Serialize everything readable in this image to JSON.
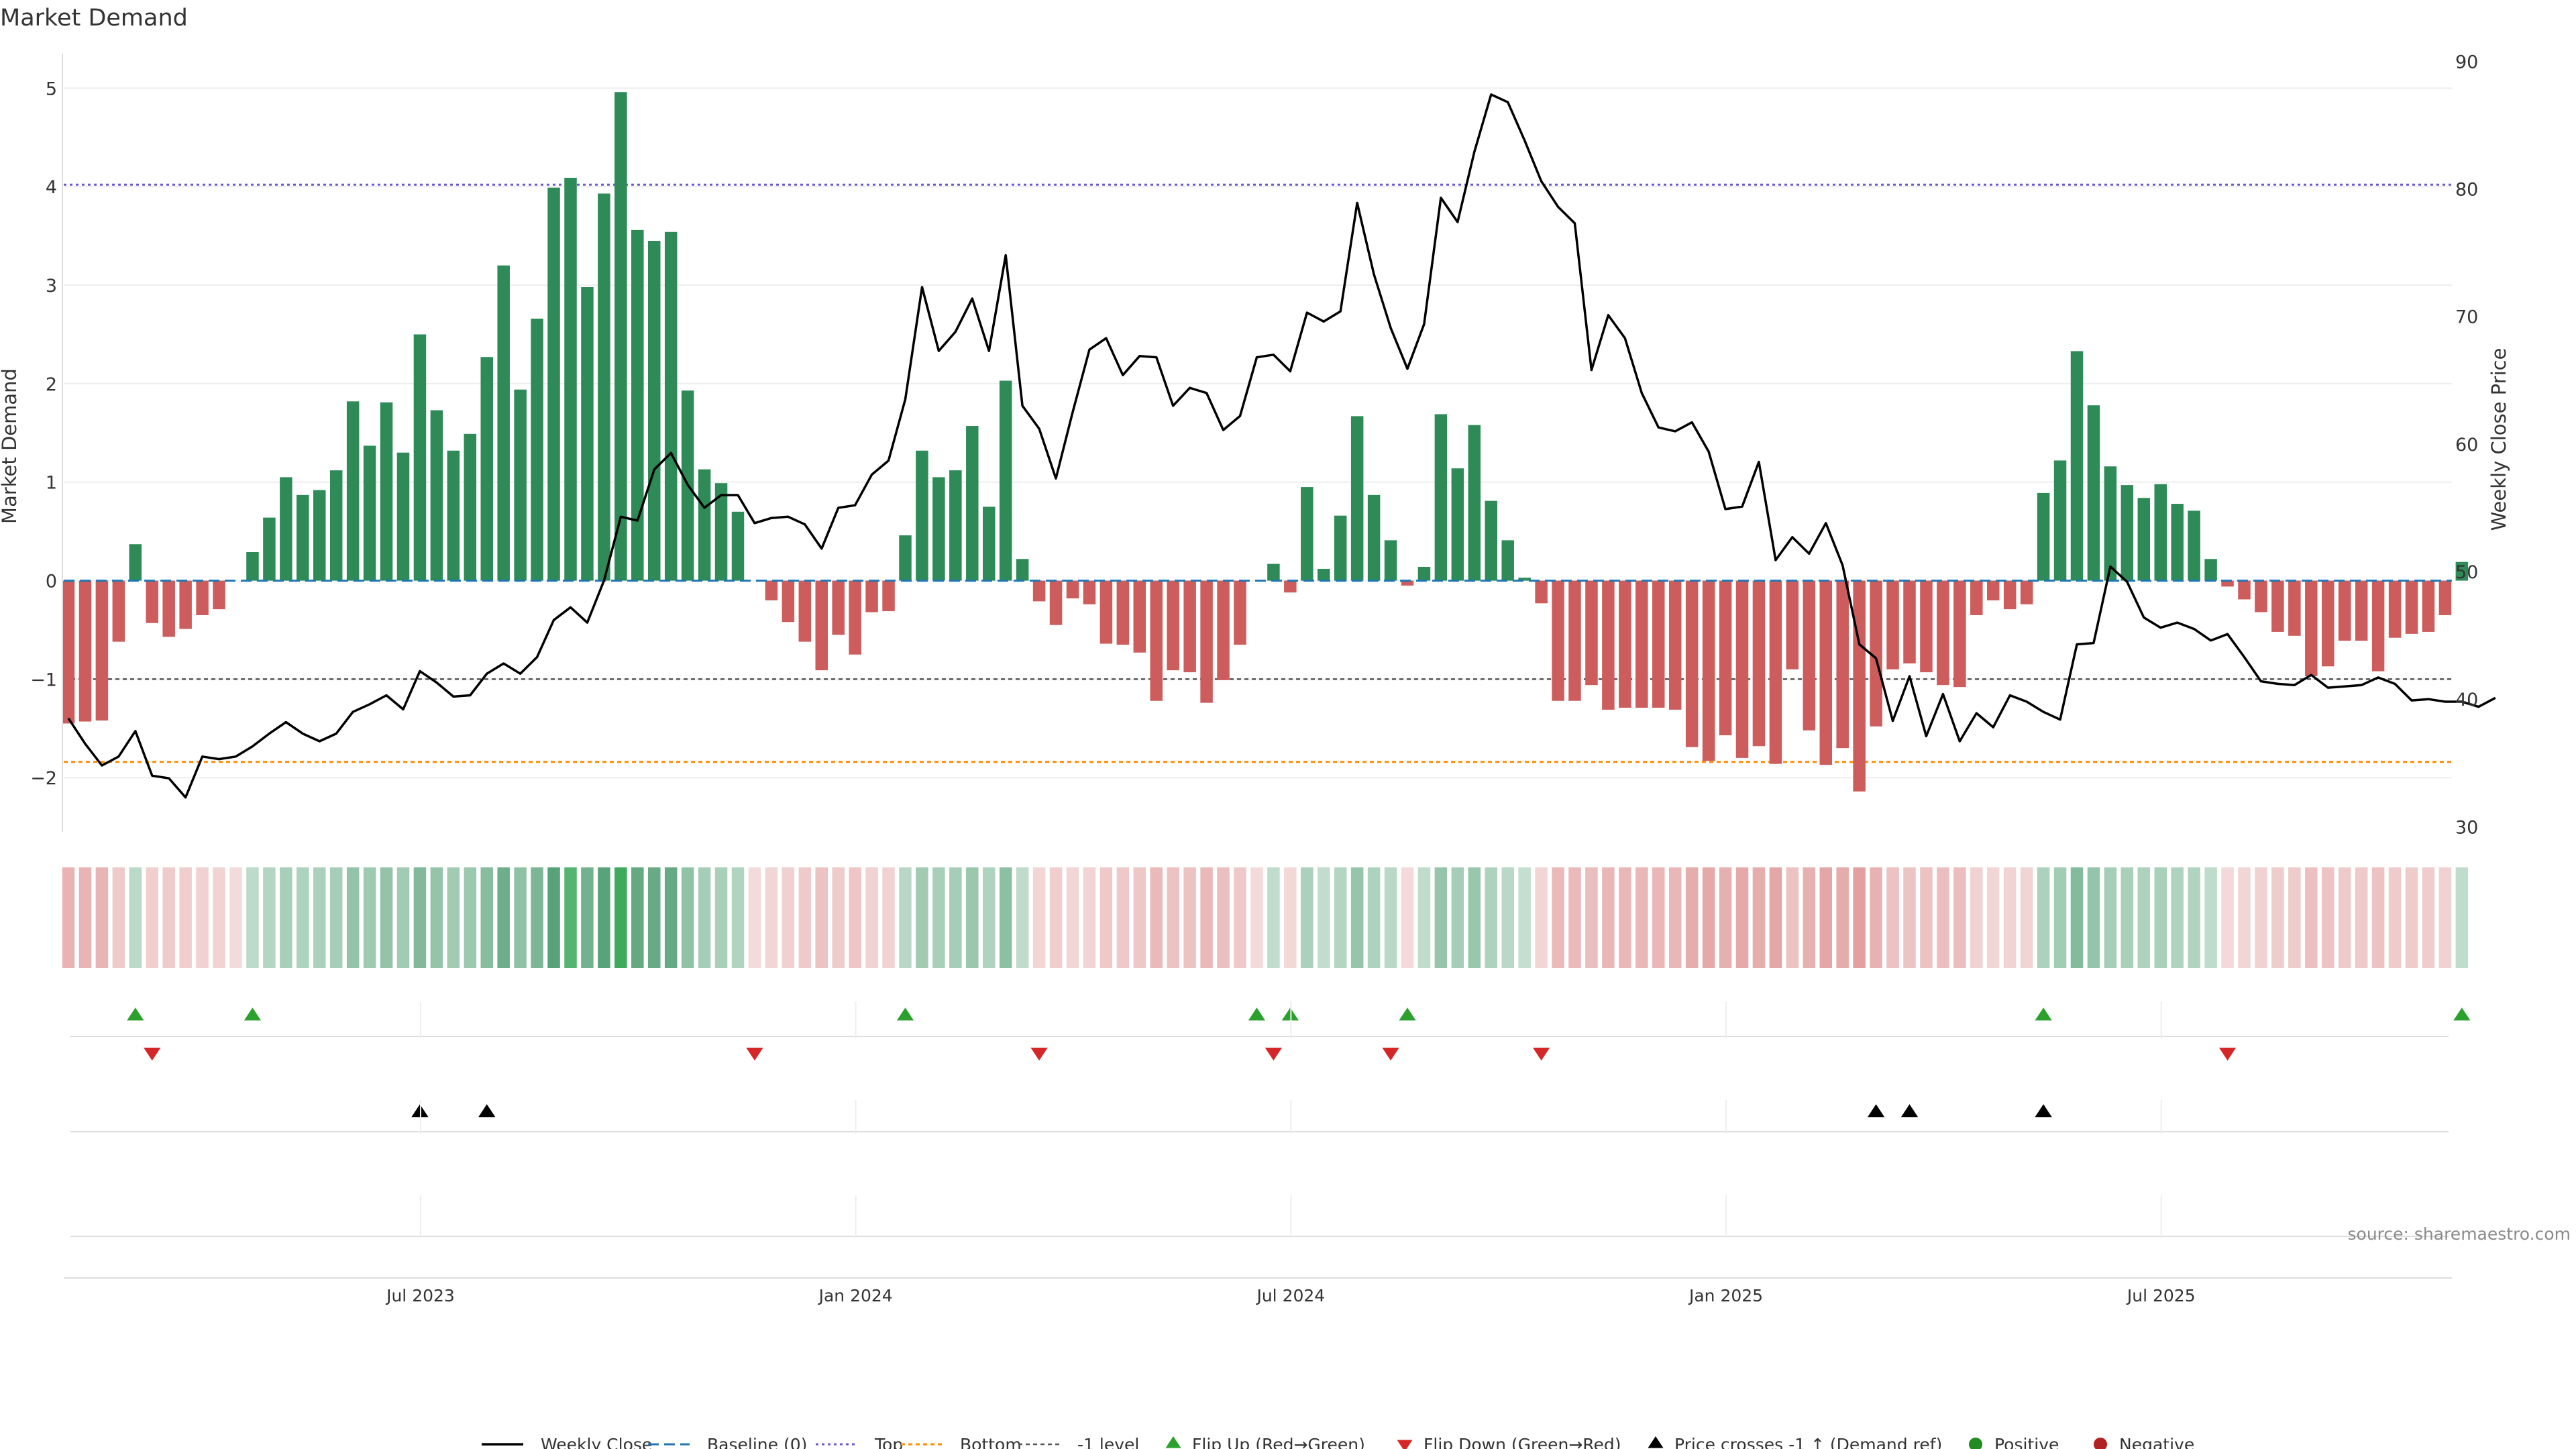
{
  "chart_data": {
    "type": "bar",
    "title": "Market Demand",
    "ylabel_left": "Market Demand",
    "ylabel_right": "Weekly Close Price",
    "source": "source: sharemaestro.com",
    "ylim_left": [
      -2.55,
      5.35
    ],
    "ylim_right": [
      29.6,
      90.6
    ],
    "yticks_left": [
      5,
      4,
      3,
      2,
      1,
      0,
      -1,
      -2
    ],
    "yticks_left_labels": [
      "5",
      "4",
      "3",
      "2",
      "1",
      "0",
      "−1",
      "−2"
    ],
    "yticks_right": [
      90,
      80,
      70,
      60,
      50,
      40,
      30
    ],
    "x_ticks": [
      "Jul 2023",
      "Jan 2024",
      "Jul 2024",
      "Jan 2025",
      "Jul 2025"
    ],
    "x_tick_week_index": [
      21,
      47,
      73,
      99,
      125
    ],
    "levels": {
      "top": 4.02,
      "bottom": -1.84,
      "minus_one": -1.0
    },
    "weeks": 144,
    "demand": [
      -1.45,
      -1.43,
      -1.42,
      -0.62,
      0.37,
      -0.43,
      -0.57,
      -0.49,
      -0.35,
      -0.29,
      0,
      0.29,
      0.64,
      1.05,
      0.87,
      0.92,
      1.12,
      1.82,
      1.37,
      1.81,
      1.3,
      2.5,
      1.73,
      1.32,
      1.49,
      2.27,
      3.2,
      1.94,
      2.66,
      3.99,
      4.09,
      2.98,
      3.93,
      4.96,
      3.56,
      3.45,
      3.54,
      1.93,
      1.13,
      0.99,
      0.7,
      0,
      -0.2,
      -0.42,
      -0.62,
      -0.91,
      -0.55,
      -0.75,
      -0.32,
      -0.31,
      0.46,
      1.32,
      1.05,
      1.12,
      1.57,
      0.75,
      2.03,
      0.22,
      -0.21,
      -0.45,
      -0.18,
      -0.24,
      -0.64,
      -0.65,
      -0.73,
      -1.22,
      -0.91,
      -0.93,
      -1.24,
      -1.01,
      -0.65,
      0,
      0.17,
      -0.12,
      0.95,
      0.12,
      0.66,
      1.67,
      0.87,
      0.41,
      -0.05,
      0.14,
      1.69,
      1.14,
      1.58,
      0.81,
      0.41,
      0.03,
      -0.23,
      -1.22,
      -1.22,
      -1.06,
      -1.31,
      -1.29,
      -1.29,
      -1.29,
      -1.31,
      -1.69,
      -1.83,
      -1.57,
      -1.8,
      -1.68,
      -1.86,
      -0.9,
      -1.52,
      -1.87,
      -1.7,
      -2.14,
      -1.48,
      -0.9,
      -0.84,
      -0.93,
      -1.06,
      -1.08,
      -0.35,
      -0.2,
      -0.29,
      -0.24,
      0.89,
      1.22,
      2.33,
      1.78,
      1.16,
      0.97,
      0.84,
      0.98,
      0.78,
      0.71,
      0.22,
      -0.06,
      -0.19,
      -0.32,
      -0.52,
      -0.56,
      -0.97,
      -0.87,
      -0.61,
      -0.61,
      -0.92,
      -0.58,
      -0.54,
      -0.52,
      -0.35,
      0.19
    ],
    "close": [
      38.5,
      36.5,
      34.8,
      35.5,
      37.5,
      34,
      33.8,
      32.3,
      35.5,
      35.3,
      35.5,
      36.3,
      37.3,
      38.2,
      37.3,
      36.7,
      37.3,
      39,
      39.6,
      40.3,
      39.2,
      42.2,
      41.3,
      40.2,
      40.3,
      42,
      42.8,
      42,
      43.3,
      46.2,
      47.2,
      46,
      49.3,
      54.3,
      54,
      58,
      59.3,
      56.8,
      55,
      56,
      56,
      53.8,
      54.2,
      54.3,
      53.7,
      51.8,
      55,
      55.2,
      57.6,
      58.7,
      63.5,
      72.3,
      67.3,
      68.8,
      71.4,
      67.3,
      74.8,
      63,
      61.2,
      57.3,
      62.5,
      67.4,
      68.3,
      65.4,
      66.9,
      66.8,
      63,
      64.4,
      64,
      61.1,
      62.2,
      66.8,
      67,
      65.7,
      70.3,
      69.6,
      70.4,
      78.9,
      73.3,
      69.1,
      65.9,
      69.4,
      79.3,
      77.4,
      82.9,
      87.4,
      86.8,
      83.8,
      80.6,
      78.6,
      77.3,
      65.8,
      70.1,
      68.3,
      64,
      61.3,
      61,
      61.7,
      59.4,
      54.9,
      55.1,
      58.6,
      50.9,
      52.7,
      51.4,
      53.8,
      50.5,
      44.3,
      43.2,
      38.3,
      41.8,
      37.1,
      40.4,
      36.7,
      38.9,
      37.8,
      40.3,
      39.8,
      39,
      38.4,
      44.3,
      44.4,
      50.4,
      49.2,
      46.4,
      45.6,
      46,
      45.5,
      44.6,
      45.1,
      43.3,
      41.4,
      41.2,
      41.1,
      41.9,
      40.9,
      41,
      41.1,
      41.7,
      41.2,
      39.9,
      40,
      39.8,
      39.8,
      39.4,
      40.1
    ],
    "flip_up_weeks": [
      4,
      11,
      50,
      71,
      73,
      80,
      118,
      143
    ],
    "flip_down_weeks": [
      5,
      41,
      58,
      72,
      79,
      88,
      129
    ],
    "price_cross_weeks": [
      21,
      25,
      108,
      110,
      118
    ],
    "legend": [
      "Weekly Close",
      "Baseline (0)",
      "Top",
      "Bottom",
      "-1 level",
      "Flip Up (Red→Green)",
      "Flip Down (Green→Red)",
      "Price crosses -1 ↑ (Demand ref)",
      "Positive",
      "Negative"
    ],
    "colors": {
      "positive": "#2e8b57",
      "negative": "#cd5c5c",
      "close": "#000000",
      "baseline": "#1f77b4",
      "top": "#6a5acd",
      "bottom": "#ff8c00",
      "minus_one": "#555555",
      "flip_up": "#2ca02c",
      "flip_down": "#d62728",
      "positive_dot": "#228b22",
      "negative_dot": "#b22222"
    }
  }
}
